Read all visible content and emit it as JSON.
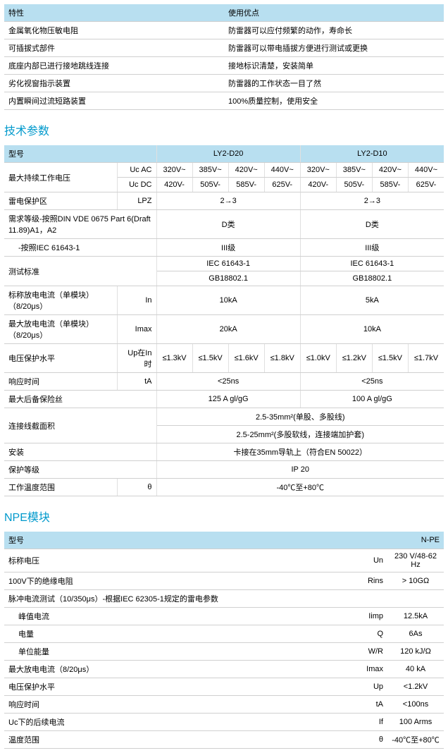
{
  "features": {
    "headers": [
      "特性",
      "使用优点"
    ],
    "rows": [
      [
        "金属氧化物压敏电阻",
        "防雷器可以应付频繁的动作，寿命长"
      ],
      [
        "可插拔式部件",
        "防雷器可以带电插拔方便进行测试或更换"
      ],
      [
        "底座内部已进行接地跳线连接",
        "接地标识清楚，安装简单"
      ],
      [
        "劣化视窗指示装置",
        "防雷器的工作状态一目了然"
      ],
      [
        "内置瞬间过流短路装置",
        "100%质量控制，使用安全"
      ]
    ]
  },
  "specs": {
    "title": "技术参数",
    "model_label": "型号",
    "models": [
      "LY2-D20",
      "LY2-D10"
    ],
    "rows": {
      "max_cont_voltage": "最大持续工作电压",
      "uc_ac": "Uc AC",
      "uc_dc": "Uc DC",
      "ac_d20": [
        "320V~",
        "385V~",
        "420V~",
        "440V~"
      ],
      "ac_d10": [
        "320V~",
        "385V~",
        "420V~",
        "440V~"
      ],
      "dc_d20": [
        "420V-",
        "505V-",
        "585V-",
        "625V-"
      ],
      "dc_d10": [
        "420V-",
        "505V-",
        "585V-",
        "625V-"
      ],
      "lpz_label": "雷电保护区",
      "lpz_unit": "LPZ",
      "lpz_val": "2→3",
      "req_label": "需求等级-按照DIN VDE 0675 Part 6(Draft 11.89)A1，A2",
      "req_val": "D类",
      "req2_label": "-按照IEC 61643-1",
      "req2_val": "III级",
      "test_label": "测试标准",
      "test_v1": "IEC 61643-1",
      "test_v2": "GB18802.1",
      "in_label": "标称放电电流（单模块）（8/20μs）",
      "in_unit": "In",
      "in_d20": "10kA",
      "in_d10": "5kA",
      "imax_label": "最大放电电流（单模块）（8/20μs）",
      "imax_unit": "Imax",
      "imax_d20": "20kA",
      "imax_d10": "10kA",
      "up_label": "电压保护水平",
      "up_unit": "Up在In时",
      "up_d20": [
        "≤1.3kV",
        "≤1.5kV",
        "≤1.6kV",
        "≤1.8kV"
      ],
      "up_d10": [
        "≤1.0kV",
        "≤1.2kV",
        "≤1.5kV",
        "≤1.7kV"
      ],
      "resp_label": "响应时间",
      "resp_unit": "tA",
      "resp_val": "<25ns",
      "fuse_label": "最大后备保险丝",
      "fuse_d20": "125 A gl/gG",
      "fuse_d10": "100 A gl/gG",
      "area_label": "连接线截面积",
      "area_v1": "2.5-35mm²(单股、多股线)",
      "area_v2": "2.5-25mm²(多股软线，连接端加护套)",
      "install_label": "安装",
      "install_val": "卡接在35mm导轨上（符合EN 50022）",
      "prot_label": "保护等级",
      "prot_val": "IP 20",
      "temp_label": "工作温度范围",
      "temp_unit": "θ",
      "temp_val": "-40℃至+80℃"
    }
  },
  "npe": {
    "title": "NPE模块",
    "model_label": "型号",
    "model_val": "N-PE",
    "rows": [
      [
        "标称电压",
        "Un",
        "230 V/48-62 Hz"
      ],
      [
        "100V下的绝缘电阻",
        "Rins",
        "> 10GΩ"
      ]
    ],
    "pulse_label": "脉冲电流测试（10/350μs）-根据IEC 62305-1规定的雷电参数",
    "pulse_rows": [
      [
        "峰值电流",
        "Iimp",
        "12.5kA"
      ],
      [
        "电量",
        "Q",
        "6As"
      ],
      [
        "单位能量",
        "W/R",
        "120 kJ/Ω"
      ]
    ],
    "rest_rows": [
      [
        "最大放电电流（8/20μs）",
        "Imax",
        "40 kA"
      ],
      [
        "电压保护水平",
        "Up",
        "<1.2kV"
      ],
      [
        "响应时间",
        "tA",
        "<100ns"
      ],
      [
        "Uc下的后续电流",
        "If",
        "100 Arms"
      ],
      [
        "温度范围",
        "θ",
        "-40℃至+80℃"
      ]
    ]
  }
}
